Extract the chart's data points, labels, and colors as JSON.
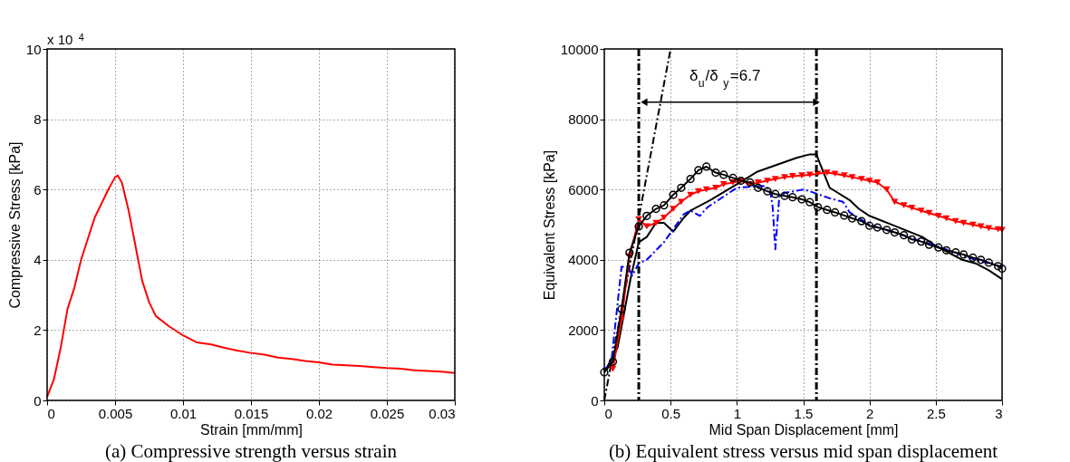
{
  "chart_data": [
    {
      "type": "line",
      "title": "(a) Compressive strength versus strain",
      "xlabel": "Strain [mm/mm]",
      "ylabel": "Compressive Stress [kPa]",
      "annotations": [
        "x 10$^{4}$"
      ],
      "xlim": [
        0,
        0.03
      ],
      "xticks": [
        0,
        0.005,
        0.01,
        0.015,
        0.02,
        0.025,
        0.03
      ],
      "ylim": [
        0,
        10
      ],
      "yticks": [
        0,
        2,
        4,
        6,
        8,
        10
      ],
      "grid": true,
      "series": [
        {
          "color": "#ff0000",
          "marker": "none",
          "line_style": "solid",
          "x": [
            0,
            0.0005,
            0.001,
            0.0015,
            0.002,
            0.0025,
            0.003,
            0.0035,
            0.004,
            0.0045,
            0.005,
            0.0052,
            0.0055,
            0.006,
            0.0065,
            0.007,
            0.0075,
            0.008,
            0.009,
            0.01,
            0.011,
            0.012,
            0.013,
            0.014,
            0.015,
            0.016,
            0.017,
            0.018,
            0.019,
            0.02,
            0.021,
            0.022,
            0.023,
            0.024,
            0.025,
            0.026,
            0.027,
            0.028,
            0.029,
            0.03
          ],
          "values": [
            0.1,
            0.6,
            1.5,
            2.6,
            3.2,
            4.0,
            4.6,
            5.2,
            5.6,
            6.0,
            6.35,
            6.4,
            6.2,
            5.4,
            4.4,
            3.4,
            2.8,
            2.4,
            2.1,
            1.85,
            1.65,
            1.6,
            1.5,
            1.42,
            1.35,
            1.3,
            1.22,
            1.18,
            1.12,
            1.08,
            1.02,
            1.0,
            0.98,
            0.95,
            0.92,
            0.9,
            0.86,
            0.84,
            0.82,
            0.78
          ]
        }
      ]
    },
    {
      "type": "line",
      "title": "(b) Equivalent stress versus mid span displacement",
      "xlabel": "Mid Span Displacement [mm]",
      "ylabel": "Equivalent Stress [kPa]",
      "annotations": [
        "δ$_{u}$/δ$_{y}$=6.7"
      ],
      "xlim": [
        0,
        3
      ],
      "xticks": [
        0,
        0.5,
        1,
        1.5,
        2,
        2.5,
        3
      ],
      "ylim": [
        0,
        10000
      ],
      "yticks": [
        0,
        2000,
        4000,
        6000,
        8000,
        10000
      ],
      "grid": true,
      "ref_lines": [
        {
          "axis": "x",
          "value": 0.26,
          "color": "#000000",
          "line_style": "dashed"
        },
        {
          "axis": "x",
          "value": 1.6,
          "color": "#000000",
          "line_style": "dashed"
        }
      ],
      "series": [
        {
          "color": "#000000",
          "marker": "none",
          "line_style": "dashed",
          "x": [
            0,
            0.5
          ],
          "values": [
            0,
            10000
          ]
        },
        {
          "color": "#000000",
          "marker": "none",
          "line_style": "solid",
          "x": [
            0,
            0.1,
            0.2,
            0.26,
            0.32,
            0.39,
            0.45,
            0.52,
            0.6,
            0.65,
            0.8,
            1.0,
            1.15,
            1.3,
            1.45,
            1.55,
            1.6,
            1.62,
            1.7,
            1.85,
            1.92,
            2.0,
            2.2,
            2.4,
            2.5,
            2.6,
            2.7,
            2.8,
            2.9,
            3.0
          ],
          "values": [
            800,
            1500,
            3500,
            4500,
            4650,
            5050,
            5050,
            4800,
            5200,
            5400,
            5700,
            6150,
            6500,
            6700,
            6900,
            7000,
            7000,
            6800,
            6050,
            5700,
            5450,
            5250,
            4950,
            4650,
            4400,
            4200,
            4000,
            3900,
            3700,
            3450
          ]
        },
        {
          "color": "#0000ff",
          "marker": "none",
          "line_style": "dashed",
          "x": [
            0,
            0.05,
            0.13,
            0.18,
            0.21,
            0.26,
            0.32,
            0.45,
            0.6,
            0.65,
            0.72,
            0.78,
            0.9,
            1.0,
            1.2,
            1.25,
            1.27,
            1.29,
            1.32,
            1.36,
            1.5,
            1.55,
            1.7,
            1.8,
            1.85,
            2.0,
            2.5,
            2.8,
            3.0
          ],
          "values": [
            900,
            1000,
            3800,
            3800,
            3550,
            3900,
            4000,
            4500,
            5300,
            5400,
            5250,
            5500,
            5800,
            6050,
            6100,
            6000,
            5500,
            4300,
            5800,
            5900,
            6000,
            5950,
            5750,
            5650,
            5350,
            5000,
            4400,
            4000,
            3800
          ]
        },
        {
          "color": "#ff0000",
          "marker": "triangle",
          "line_style": "solid",
          "x": [
            0.065,
            0.13,
            0.19,
            0.26,
            0.32,
            0.39,
            0.45,
            0.52,
            0.58,
            0.65,
            0.71,
            0.77,
            0.84,
            0.9,
            0.97,
            1.03,
            1.1,
            1.16,
            1.23,
            1.29,
            1.36,
            1.42,
            1.49,
            1.55,
            1.61,
            1.68,
            1.74,
            1.81,
            1.87,
            1.94,
            2.0,
            2.06,
            2.13,
            2.19,
            2.26,
            2.32,
            2.39,
            2.45,
            2.52,
            2.58,
            2.65,
            2.71,
            2.78,
            2.84,
            2.9,
            2.97,
            3.0
          ],
          "values": [
            900,
            2300,
            4100,
            5150,
            4950,
            5050,
            5200,
            5450,
            5650,
            5850,
            5950,
            6000,
            6050,
            6150,
            6200,
            6250,
            6150,
            6200,
            6250,
            6300,
            6350,
            6380,
            6400,
            6420,
            6450,
            6480,
            6450,
            6400,
            6350,
            6300,
            6250,
            6200,
            6000,
            5650,
            5550,
            5480,
            5400,
            5330,
            5250,
            5180,
            5100,
            5050,
            5000,
            4950,
            4900,
            4870,
            4850
          ]
        },
        {
          "color": "#000000",
          "marker": "circle",
          "line_style": "solid",
          "x": [
            0,
            0.065,
            0.13,
            0.19,
            0.26,
            0.32,
            0.39,
            0.45,
            0.52,
            0.58,
            0.65,
            0.71,
            0.77,
            0.84,
            0.9,
            0.97,
            1.03,
            1.1,
            1.16,
            1.23,
            1.29,
            1.36,
            1.42,
            1.49,
            1.55,
            1.61,
            1.68,
            1.74,
            1.81,
            1.87,
            1.94,
            2.0,
            2.06,
            2.13,
            2.19,
            2.26,
            2.32,
            2.39,
            2.45,
            2.52,
            2.58,
            2.65,
            2.71,
            2.78,
            2.84,
            2.9,
            2.97,
            3.0
          ],
          "values": [
            800,
            1100,
            2600,
            4200,
            4950,
            5250,
            5450,
            5550,
            5850,
            6050,
            6300,
            6550,
            6650,
            6480,
            6420,
            6330,
            6250,
            6200,
            6050,
            5950,
            5870,
            5820,
            5780,
            5720,
            5640,
            5500,
            5420,
            5350,
            5260,
            5180,
            5100,
            4970,
            4920,
            4850,
            4780,
            4700,
            4580,
            4520,
            4430,
            4350,
            4270,
            4210,
            4150,
            4060,
            4000,
            3920,
            3820,
            3750
          ]
        }
      ]
    }
  ]
}
